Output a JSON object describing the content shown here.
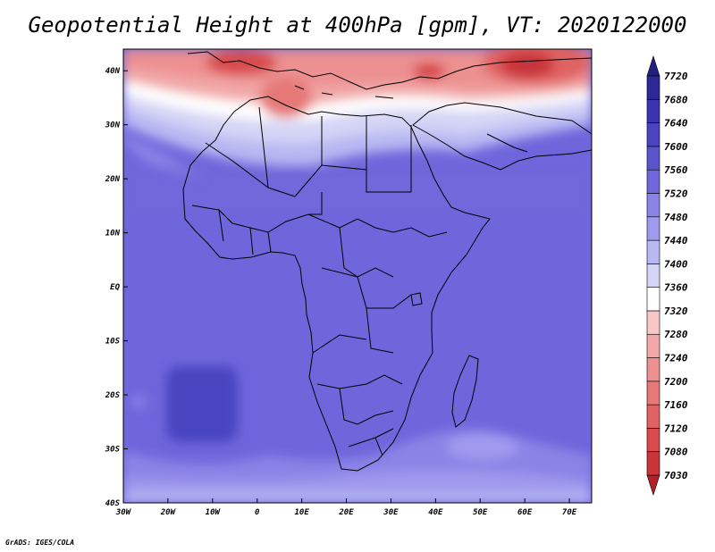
{
  "title": "Geopotential Height at 400hPa [gpm], VT: 2020122000",
  "credit": "GrADS: IGES/COLA",
  "chart_data": {
    "type": "heatmap",
    "variable": "Geopotential Height",
    "level": "400hPa",
    "units": "gpm",
    "valid_time": "2020122000",
    "lon_ticks": [
      "30W",
      "20W",
      "10W",
      "0",
      "10E",
      "20E",
      "30E",
      "40E",
      "50E",
      "60E",
      "70E"
    ],
    "lon_values": [
      -30,
      -20,
      -10,
      0,
      10,
      20,
      30,
      40,
      50,
      60,
      70
    ],
    "lat_ticks": [
      "40N",
      "30N",
      "20N",
      "10N",
      "EQ",
      "10S",
      "20S",
      "30S",
      "40S"
    ],
    "lat_values": [
      40,
      30,
      20,
      10,
      0,
      -10,
      -20,
      -30,
      -40
    ],
    "lon_range": [
      -30,
      75
    ],
    "lat_range": [
      -40,
      44
    ],
    "colorbar": {
      "levels": [
        7030,
        7080,
        7120,
        7160,
        7200,
        7240,
        7280,
        7320,
        7360,
        7400,
        7440,
        7480,
        7520,
        7560,
        7600,
        7640,
        7680,
        7720
      ],
      "colors": [
        "#b4202a",
        "#c8343a",
        "#d84a4c",
        "#e06262",
        "#e67878",
        "#ec9090",
        "#f2a8a8",
        "#f8c8c8",
        "#ffffff",
        "#d4d4f6",
        "#b8b8f2",
        "#a09aee",
        "#8b84e6",
        "#7068da",
        "#5a54cc",
        "#4a44c0",
        "#3a34b0",
        "#2c2896",
        "#222080"
      ]
    }
  }
}
